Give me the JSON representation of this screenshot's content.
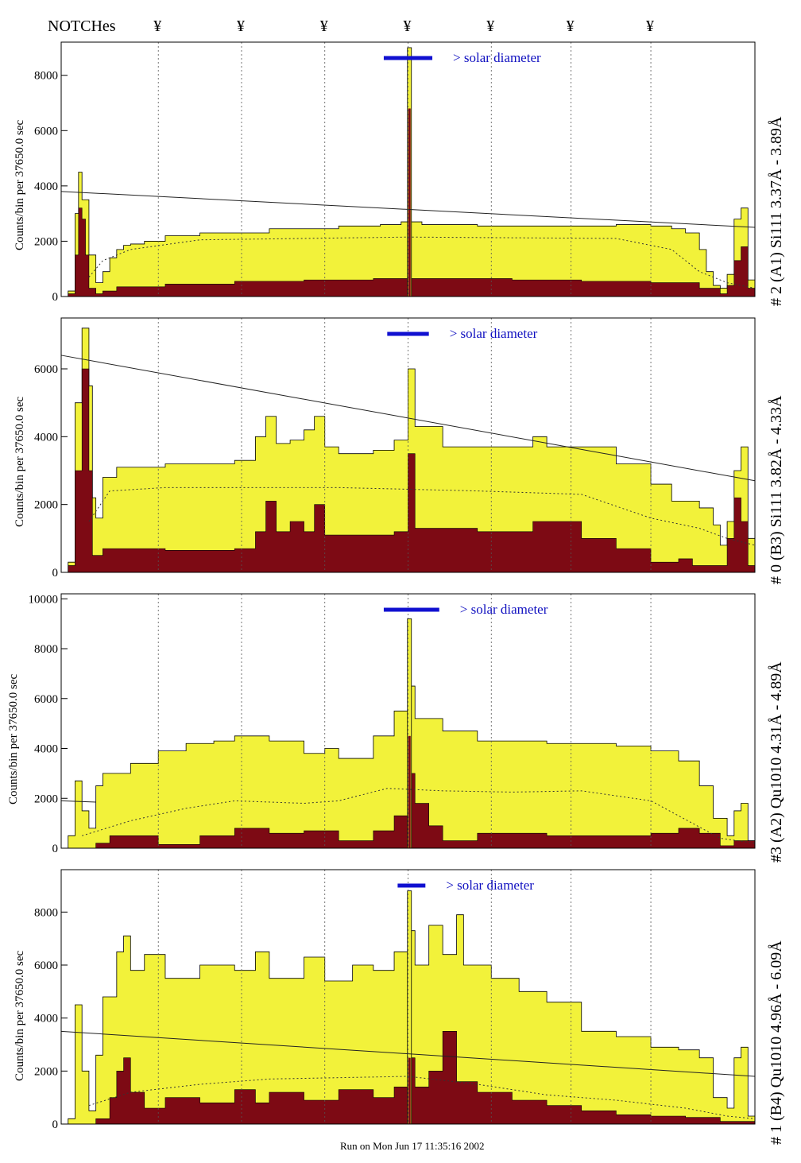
{
  "header": {
    "notches_label": "NOTCHes",
    "notch_symbol": "¥"
  },
  "footer": {
    "run_text": "Run on Mon Jun 17 11:35:16 2002"
  },
  "colors": {
    "fill_total": "#f2f23a",
    "fill_filtered": "#7d0a14",
    "solar_bar": "#1010d0",
    "solar_text": "#1010c0",
    "dotted_grid": "#555555"
  },
  "notch_x": [
    14,
    26,
    38,
    50,
    62,
    73.5,
    85
  ],
  "chart_data": [
    {
      "type": "area",
      "panel_label": "# 2 (A1) Si111  3.37Å - 3.89Å",
      "ylabel": "Counts/bin per  37650.0 sec",
      "annotation": "> solar diameter",
      "xlim": [
        0,
        100
      ],
      "ylim": [
        0,
        9200
      ],
      "yticks": [
        0,
        2000,
        4000,
        6000,
        8000
      ],
      "solar_bar": [
        46.5,
        53.5
      ],
      "line": [
        [
          0,
          3800
        ],
        [
          100,
          2500
        ]
      ],
      "envelope": [
        [
          0,
          0
        ],
        [
          1,
          200
        ],
        [
          2,
          3000
        ],
        [
          2.5,
          4500
        ],
        [
          3,
          3500
        ],
        [
          4,
          1500
        ],
        [
          5,
          500
        ],
        [
          6,
          900
        ],
        [
          7,
          1400
        ],
        [
          8,
          1700
        ],
        [
          9,
          1850
        ],
        [
          10,
          1900
        ],
        [
          12,
          2000
        ],
        [
          15,
          2200
        ],
        [
          20,
          2300
        ],
        [
          30,
          2450
        ],
        [
          40,
          2550
        ],
        [
          46,
          2600
        ],
        [
          48,
          2600
        ],
        [
          49,
          2700
        ],
        [
          50,
          2700
        ],
        [
          52,
          2600
        ],
        [
          60,
          2550
        ],
        [
          70,
          2550
        ],
        [
          80,
          2600
        ],
        [
          85,
          2550
        ],
        [
          88,
          2450
        ],
        [
          90,
          2300
        ],
        [
          92,
          1700
        ],
        [
          93,
          900
        ],
        [
          94,
          400
        ],
        [
          95,
          300
        ],
        [
          96,
          800
        ],
        [
          97,
          2800
        ],
        [
          98,
          3200
        ],
        [
          99,
          600
        ],
        [
          100,
          0
        ]
      ],
      "dark": [
        [
          0,
          0
        ],
        [
          1,
          100
        ],
        [
          2,
          1500
        ],
        [
          2.5,
          3200
        ],
        [
          3,
          2800
        ],
        [
          3.5,
          1500
        ],
        [
          4,
          300
        ],
        [
          5,
          100
        ],
        [
          6,
          200
        ],
        [
          8,
          350
        ],
        [
          15,
          450
        ],
        [
          25,
          550
        ],
        [
          35,
          600
        ],
        [
          45,
          650
        ],
        [
          55,
          650
        ],
        [
          65,
          600
        ],
        [
          75,
          550
        ],
        [
          85,
          500
        ],
        [
          92,
          300
        ],
        [
          95,
          100
        ],
        [
          96,
          400
        ],
        [
          97,
          1300
        ],
        [
          98,
          1800
        ],
        [
          99,
          300
        ],
        [
          100,
          0
        ]
      ],
      "dotted": [
        [
          4,
          700
        ],
        [
          6,
          1300
        ],
        [
          10,
          1700
        ],
        [
          20,
          2050
        ],
        [
          50,
          2150
        ],
        [
          80,
          2100
        ],
        [
          88,
          1700
        ],
        [
          92,
          900
        ],
        [
          96,
          500
        ],
        [
          100,
          300
        ]
      ],
      "spike": {
        "x": 50.2,
        "total": 9000,
        "dark": 6800
      }
    },
    {
      "type": "area",
      "panel_label": "# 0 (B3) Si111  3.82Å - 4.33Å",
      "ylabel": "Counts/bin per  37650.0 sec",
      "annotation": "> solar diameter",
      "xlim": [
        0,
        100
      ],
      "ylim": [
        0,
        7500
      ],
      "yticks": [
        0,
        2000,
        4000,
        6000
      ],
      "solar_bar": [
        47,
        53
      ],
      "line": [
        [
          0,
          6400
        ],
        [
          100,
          2700
        ]
      ],
      "envelope": [
        [
          0,
          0
        ],
        [
          1,
          300
        ],
        [
          2,
          5000
        ],
        [
          3,
          7200
        ],
        [
          4,
          5500
        ],
        [
          4.5,
          2200
        ],
        [
          5,
          1600
        ],
        [
          6,
          2800
        ],
        [
          8,
          3100
        ],
        [
          15,
          3200
        ],
        [
          25,
          3300
        ],
        [
          28,
          4000
        ],
        [
          29.5,
          4600
        ],
        [
          31,
          3800
        ],
        [
          33,
          3900
        ],
        [
          35,
          4200
        ],
        [
          36.5,
          4600
        ],
        [
          38,
          3700
        ],
        [
          40,
          3500
        ],
        [
          45,
          3600
        ],
        [
          48,
          3900
        ],
        [
          50,
          6000
        ],
        [
          51,
          4300
        ],
        [
          55,
          3700
        ],
        [
          65,
          3700
        ],
        [
          68,
          4000
        ],
        [
          70,
          3700
        ],
        [
          80,
          3200
        ],
        [
          85,
          2600
        ],
        [
          88,
          2100
        ],
        [
          92,
          1900
        ],
        [
          94,
          1400
        ],
        [
          95,
          800
        ],
        [
          96,
          1500
        ],
        [
          97,
          3000
        ],
        [
          98,
          3700
        ],
        [
          99,
          1000
        ],
        [
          100,
          0
        ]
      ],
      "dark": [
        [
          0,
          0
        ],
        [
          1,
          200
        ],
        [
          2,
          3000
        ],
        [
          3,
          6000
        ],
        [
          4,
          3000
        ],
        [
          4.5,
          500
        ],
        [
          6,
          700
        ],
        [
          15,
          650
        ],
        [
          25,
          700
        ],
        [
          28,
          1200
        ],
        [
          29.5,
          2100
        ],
        [
          31,
          1200
        ],
        [
          33,
          1500
        ],
        [
          35,
          1200
        ],
        [
          36.5,
          2000
        ],
        [
          38,
          1100
        ],
        [
          45,
          1100
        ],
        [
          48,
          1200
        ],
        [
          50,
          3500
        ],
        [
          51,
          1300
        ],
        [
          60,
          1200
        ],
        [
          68,
          1500
        ],
        [
          75,
          1000
        ],
        [
          80,
          700
        ],
        [
          85,
          300
        ],
        [
          89,
          400
        ],
        [
          91,
          200
        ],
        [
          95,
          200
        ],
        [
          96,
          1000
        ],
        [
          97,
          2200
        ],
        [
          98,
          1500
        ],
        [
          99,
          200
        ],
        [
          100,
          0
        ]
      ],
      "dotted": [
        [
          4,
          1500
        ],
        [
          7,
          2400
        ],
        [
          15,
          2500
        ],
        [
          40,
          2500
        ],
        [
          60,
          2400
        ],
        [
          75,
          2300
        ],
        [
          85,
          1600
        ],
        [
          92,
          1300
        ],
        [
          96,
          1000
        ],
        [
          100,
          800
        ]
      ],
      "spike": null
    },
    {
      "type": "area",
      "panel_label": "#3 (A2) Qu1010  4.31Å - 4.89Å",
      "ylabel": "Counts/bin per  37650.0 sec",
      "annotation": "> solar diameter",
      "xlim": [
        0,
        100
      ],
      "ylim": [
        0,
        10200
      ],
      "yticks": [
        0,
        2000,
        4000,
        6000,
        8000,
        10000
      ],
      "solar_bar": [
        46.5,
        54.5
      ],
      "line": [
        [
          0,
          1900
        ],
        [
          5,
          1850
        ]
      ],
      "envelope": [
        [
          0,
          0
        ],
        [
          1,
          500
        ],
        [
          2,
          2700
        ],
        [
          3,
          1500
        ],
        [
          4,
          800
        ],
        [
          5,
          2500
        ],
        [
          6,
          3000
        ],
        [
          10,
          3400
        ],
        [
          14,
          3900
        ],
        [
          18,
          4200
        ],
        [
          22,
          4300
        ],
        [
          25,
          4500
        ],
        [
          30,
          4300
        ],
        [
          35,
          3800
        ],
        [
          38,
          4000
        ],
        [
          40,
          3600
        ],
        [
          45,
          4500
        ],
        [
          48,
          5500
        ],
        [
          50,
          6500
        ],
        [
          51,
          5200
        ],
        [
          55,
          4700
        ],
        [
          60,
          4300
        ],
        [
          70,
          4200
        ],
        [
          80,
          4100
        ],
        [
          85,
          3900
        ],
        [
          89,
          3500
        ],
        [
          92,
          2500
        ],
        [
          94,
          1200
        ],
        [
          96,
          500
        ],
        [
          97,
          1500
        ],
        [
          98,
          1800
        ],
        [
          99,
          300
        ],
        [
          100,
          0
        ]
      ],
      "dark": [
        [
          0,
          0
        ],
        [
          5,
          200
        ],
        [
          7,
          500
        ],
        [
          12,
          500
        ],
        [
          14,
          150
        ],
        [
          20,
          500
        ],
        [
          25,
          800
        ],
        [
          30,
          600
        ],
        [
          35,
          700
        ],
        [
          40,
          300
        ],
        [
          45,
          700
        ],
        [
          48,
          1300
        ],
        [
          50,
          3000
        ],
        [
          51,
          1800
        ],
        [
          53,
          900
        ],
        [
          55,
          300
        ],
        [
          60,
          600
        ],
        [
          70,
          500
        ],
        [
          80,
          500
        ],
        [
          85,
          600
        ],
        [
          89,
          800
        ],
        [
          92,
          600
        ],
        [
          95,
          100
        ],
        [
          97,
          300
        ],
        [
          100,
          0
        ]
      ],
      "dotted": [
        [
          3,
          500
        ],
        [
          10,
          1100
        ],
        [
          18,
          1600
        ],
        [
          25,
          1900
        ],
        [
          35,
          1800
        ],
        [
          40,
          1900
        ],
        [
          47,
          2400
        ],
        [
          55,
          2300
        ],
        [
          65,
          2250
        ],
        [
          75,
          2300
        ],
        [
          85,
          1900
        ],
        [
          91,
          1000
        ],
        [
          95,
          400
        ],
        [
          100,
          200
        ]
      ],
      "spike": {
        "x": 50.2,
        "total": 9200,
        "dark": 4500
      }
    },
    {
      "type": "area",
      "panel_label": "# 1 (B4) Qu1010 4.96Å - 6.09Å",
      "ylabel": "Counts/bin per  37650.0 sec",
      "annotation": "> solar diameter",
      "xlim": [
        0,
        100
      ],
      "ylim": [
        0,
        9600
      ],
      "yticks": [
        0,
        2000,
        4000,
        6000,
        8000
      ],
      "solar_bar": [
        48.5,
        52.5
      ],
      "line": [
        [
          0,
          3500
        ],
        [
          100,
          1800
        ]
      ],
      "envelope": [
        [
          0,
          0
        ],
        [
          1,
          200
        ],
        [
          2,
          4500
        ],
        [
          3,
          2000
        ],
        [
          4,
          500
        ],
        [
          5,
          2600
        ],
        [
          6,
          4800
        ],
        [
          8,
          6500
        ],
        [
          9,
          7100
        ],
        [
          10,
          5800
        ],
        [
          12,
          6400
        ],
        [
          15,
          5500
        ],
        [
          20,
          6000
        ],
        [
          25,
          5800
        ],
        [
          28,
          6500
        ],
        [
          30,
          5500
        ],
        [
          35,
          6300
        ],
        [
          38,
          5400
        ],
        [
          42,
          6000
        ],
        [
          45,
          5800
        ],
        [
          48,
          6500
        ],
        [
          50,
          7300
        ],
        [
          51,
          6000
        ],
        [
          53,
          7500
        ],
        [
          55,
          6400
        ],
        [
          57,
          7900
        ],
        [
          58,
          6000
        ],
        [
          62,
          5500
        ],
        [
          66,
          5000
        ],
        [
          70,
          4600
        ],
        [
          75,
          3500
        ],
        [
          80,
          3300
        ],
        [
          85,
          2900
        ],
        [
          89,
          2800
        ],
        [
          92,
          2500
        ],
        [
          94,
          1000
        ],
        [
          96,
          600
        ],
        [
          97,
          2500
        ],
        [
          98,
          2900
        ],
        [
          99,
          300
        ],
        [
          100,
          0
        ]
      ],
      "dark": [
        [
          0,
          0
        ],
        [
          5,
          200
        ],
        [
          7,
          1000
        ],
        [
          8,
          2000
        ],
        [
          9,
          2500
        ],
        [
          10,
          1200
        ],
        [
          12,
          600
        ],
        [
          15,
          1000
        ],
        [
          20,
          800
        ],
        [
          25,
          1300
        ],
        [
          28,
          800
        ],
        [
          30,
          1200
        ],
        [
          35,
          900
        ],
        [
          40,
          1300
        ],
        [
          45,
          1000
        ],
        [
          48,
          1400
        ],
        [
          50,
          2500
        ],
        [
          51,
          1400
        ],
        [
          53,
          2000
        ],
        [
          55,
          3500
        ],
        [
          57,
          1600
        ],
        [
          60,
          1200
        ],
        [
          65,
          900
        ],
        [
          70,
          700
        ],
        [
          75,
          500
        ],
        [
          80,
          350
        ],
        [
          85,
          300
        ],
        [
          90,
          250
        ],
        [
          95,
          100
        ],
        [
          100,
          0
        ]
      ],
      "dotted": [
        [
          4,
          700
        ],
        [
          10,
          1200
        ],
        [
          20,
          1500
        ],
        [
          30,
          1700
        ],
        [
          40,
          1750
        ],
        [
          50,
          1800
        ],
        [
          60,
          1500
        ],
        [
          70,
          1100
        ],
        [
          80,
          900
        ],
        [
          90,
          600
        ],
        [
          96,
          300
        ],
        [
          100,
          200
        ]
      ],
      "spike": {
        "x": 50.2,
        "total": 8800,
        "dark": 2500
      }
    }
  ]
}
